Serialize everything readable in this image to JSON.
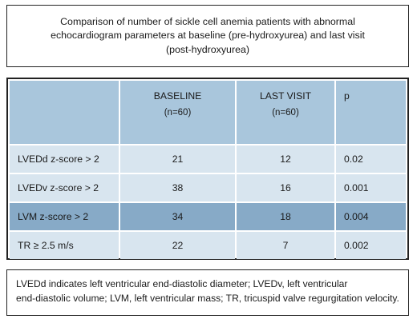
{
  "title": {
    "line1": "Comparison of number of sickle cell anemia patients with abnormal",
    "line2": "echocardiogram parameters at baseline (pre-hydroxyurea) and last visit",
    "line3": "(post-hydroxyurea)"
  },
  "table": {
    "headers": {
      "blank": "",
      "baseline": "BASELINE",
      "baseline_n": "(n=60)",
      "last_visit": "LAST VISIT",
      "last_visit_n": "(n=60)",
      "p": "p"
    },
    "rows": [
      {
        "label": "LVEDd z-score > 2",
        "baseline": "21",
        "last_visit": "12",
        "p": "0.02"
      },
      {
        "label": "LVEDv z-score > 2",
        "baseline": "38",
        "last_visit": "16",
        "p": "0.001"
      },
      {
        "label": "LVM z-score > 2",
        "baseline": "34",
        "last_visit": "18",
        "p": "0.004"
      },
      {
        "label": "TR ≥ 2.5 m/s",
        "baseline": "22",
        "last_visit": "7",
        "p": "0.002"
      }
    ]
  },
  "footnote": {
    "line1": "LVEDd indicates left ventricular end-diastolic diameter; LVEDv, left ventricular",
    "line2": "end-diastolic volume; LVM, left ventricular mass; TR, tricuspid valve regurgitation velocity."
  },
  "colors": {
    "header_bg": "#a9c6dc",
    "row_light_bg": "#d8e5ef",
    "row_dark_bg": "#87aac7",
    "border": "#222222"
  }
}
